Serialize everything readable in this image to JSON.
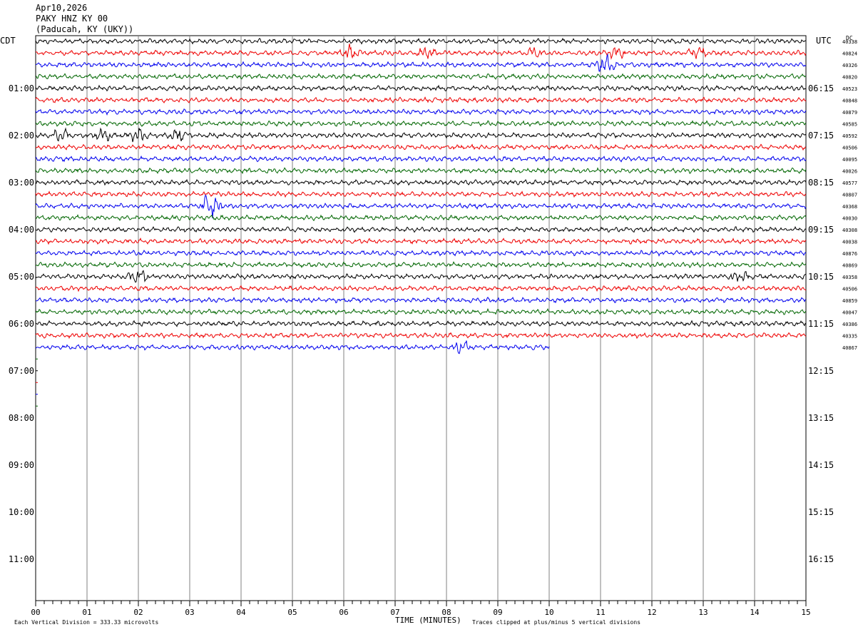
{
  "header": {
    "date": "Apr10,2026",
    "station": "PAKY HNZ KY 00",
    "location": "(Paducah, KY (UKY))"
  },
  "left_tz": "CDT",
  "right_tz": "UTC",
  "dc_label": "DC",
  "footer": {
    "division_note": "Each Vertical Division =  333.33 microvolts",
    "clip_note": "Traces clipped at plus/minus 5 vertical divisions"
  },
  "colors": {
    "trace_cycle": [
      "#000000",
      "#ee0000",
      "#0000ee",
      "#006600"
    ],
    "grid": "#808080"
  },
  "chart_data": {
    "type": "line",
    "title": "PAKY HNZ KY 00",
    "xlabel": "TIME (MINUTES)",
    "xlim": [
      0,
      15
    ],
    "x_ticks": [
      "00",
      "01",
      "02",
      "03",
      "04",
      "05",
      "06",
      "07",
      "08",
      "09",
      "10",
      "11",
      "12",
      "13",
      "14",
      "15"
    ],
    "rows_per_hour": 4,
    "total_rows": 48,
    "left_hour_labels": [
      "01:00",
      "02:00",
      "03:00",
      "04:00",
      "05:00",
      "06:00",
      "07:00",
      "08:00",
      "09:00",
      "10:00",
      "11:00"
    ],
    "right_hour_labels": [
      "06:15",
      "07:15",
      "08:15",
      "09:15",
      "10:15",
      "11:15",
      "12:15",
      "13:15",
      "14:15",
      "15:15",
      "16:15"
    ],
    "trace_dc_values": [
      "40338",
      "40824",
      "40326",
      "40820",
      "40523",
      "40848",
      "40879",
      "40585",
      "40592",
      "40506",
      "40095",
      "40026",
      "40577",
      "40807",
      "40368",
      "40030",
      "40308",
      "40038",
      "40876",
      "40869",
      "40358",
      "40506",
      "40859",
      "40047",
      "40386",
      "40335",
      "40867"
    ],
    "traces_full": 26,
    "last_trace_end_minute": 10.0,
    "events": [
      {
        "trace": 1,
        "minute": 6.1,
        "strength": 2.0
      },
      {
        "trace": 1,
        "minute": 7.6,
        "strength": 1.6
      },
      {
        "trace": 1,
        "minute": 9.7,
        "strength": 1.4
      },
      {
        "trace": 1,
        "minute": 11.3,
        "strength": 1.8
      },
      {
        "trace": 1,
        "minute": 12.9,
        "strength": 1.8
      },
      {
        "trace": 2,
        "minute": 11.1,
        "strength": 3.0
      },
      {
        "trace": 8,
        "minute": 0.5,
        "strength": 1.8
      },
      {
        "trace": 8,
        "minute": 1.3,
        "strength": 1.8
      },
      {
        "trace": 8,
        "minute": 2.0,
        "strength": 1.8
      },
      {
        "trace": 8,
        "minute": 2.8,
        "strength": 1.8
      },
      {
        "trace": 14,
        "minute": 3.4,
        "strength": 5.0
      },
      {
        "trace": 20,
        "minute": 2.0,
        "strength": 2.2
      },
      {
        "trace": 20,
        "minute": 13.7,
        "strength": 1.6
      },
      {
        "trace": 26,
        "minute": 8.3,
        "strength": 1.6
      }
    ]
  }
}
